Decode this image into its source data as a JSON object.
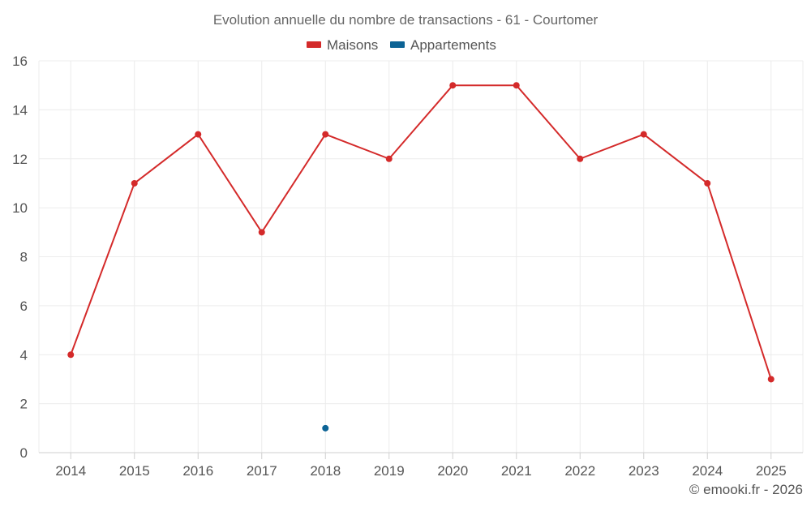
{
  "chart_data": {
    "type": "line",
    "title": "Evolution annuelle du nombre de transactions - 61 - Courtomer",
    "categories": [
      "2014",
      "2015",
      "2016",
      "2017",
      "2018",
      "2019",
      "2020",
      "2021",
      "2022",
      "2023",
      "2024",
      "2025"
    ],
    "series": [
      {
        "name": "Maisons",
        "color": "#d42a2a",
        "values": [
          4,
          11,
          13,
          9,
          13,
          12,
          15,
          15,
          12,
          13,
          11,
          3
        ]
      },
      {
        "name": "Appartements",
        "color": "#0c6395",
        "values": [
          null,
          null,
          null,
          null,
          1,
          null,
          null,
          null,
          null,
          null,
          null,
          null
        ]
      }
    ],
    "ylim": [
      0,
      16
    ],
    "yticks": [
      0,
      2,
      4,
      6,
      8,
      10,
      12,
      14,
      16
    ],
    "xlabel": "",
    "ylabel": "",
    "grid": true,
    "legend_position": "top-center"
  },
  "credit": "© emooki.fr - 2026"
}
